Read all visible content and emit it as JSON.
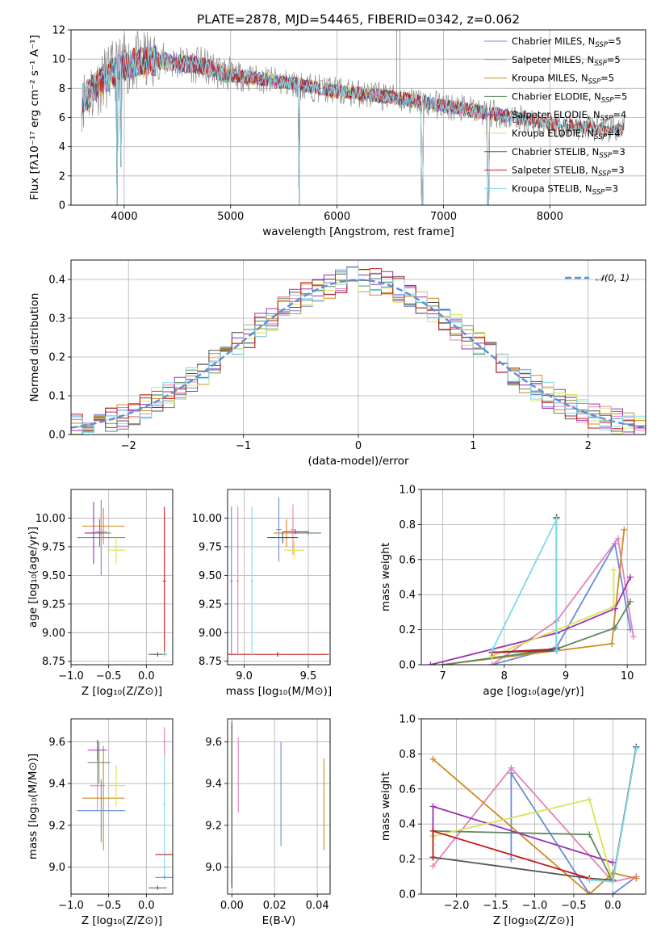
{
  "figure": {
    "title": "PLATE=2878, MJD=54465, FIBERID=0342, z=0.062"
  },
  "model_colors": [
    "#6a8adc",
    "#e681b7",
    "#d08a1f",
    "#5e8a5e",
    "#9b31ad",
    "#d8e354",
    "#565656",
    "#c21b1b",
    "#7fd9e8"
  ],
  "chart_data": [
    {
      "id": "spectrum",
      "type": "line",
      "title": "PLATE=2878, MJD=54465, FIBERID=0342, z=0.062",
      "xlabel": "wavelength [Angstrom, rest frame]",
      "ylabel": "Flux [fλ10⁻¹⁷ erg cm⁻² s⁻¹ A⁻¹]",
      "xlim": [
        3500,
        8900
      ],
      "ylim": [
        0,
        12
      ],
      "xticks": [
        4000,
        5000,
        6000,
        7000,
        8000
      ],
      "yticks": [
        0,
        2,
        4,
        6,
        8,
        10,
        12
      ],
      "legend_position": "top-right",
      "legend": [
        {
          "name": "Chabrier MILES, N",
          "sub": "SSP",
          "tail": "=5"
        },
        {
          "name": "Salpeter MILES, N",
          "sub": "SSP",
          "tail": "=5"
        },
        {
          "name": "Kroupa MILES, N",
          "sub": "SSP",
          "tail": "=5"
        },
        {
          "name": "Chabrier ELODIE, N",
          "sub": "SSP",
          "tail": "=5"
        },
        {
          "name": "Salpeter ELODIE, N",
          "sub": "SSP",
          "tail": "=4"
        },
        {
          "name": "Kroupa ELODIE, N",
          "sub": "SSP",
          "tail": "=4"
        },
        {
          "name": "Chabrier STELIB, N",
          "sub": "SSP",
          "tail": "=3"
        },
        {
          "name": "Salpeter STELIB, N",
          "sub": "SSP",
          "tail": "=3"
        },
        {
          "name": "Kroupa STELIB, N",
          "sub": "SSP",
          "tail": "=3"
        }
      ],
      "continuum": [
        [
          3600,
          7.2
        ],
        [
          3800,
          8.6
        ],
        [
          4000,
          9.6
        ],
        [
          4300,
          9.9
        ],
        [
          4700,
          9.6
        ],
        [
          5000,
          8.9
        ],
        [
          5500,
          8.4
        ],
        [
          6000,
          7.8
        ],
        [
          6500,
          7.4
        ],
        [
          7000,
          6.8
        ],
        [
          7500,
          6.2
        ],
        [
          8000,
          5.6
        ],
        [
          8500,
          5.2
        ],
        [
          8700,
          5.1
        ]
      ],
      "observed_x_range": [
        3600,
        8700
      ],
      "model_x_range": [
        3600,
        7600
      ],
      "model_x_range_long": [
        3600,
        8700
      ],
      "absorption_dips": [
        [
          3933,
          0
        ],
        [
          3968,
          2.6
        ],
        [
          5640,
          0
        ],
        [
          6800,
          0
        ],
        [
          7420,
          0
        ]
      ],
      "emission_spikes": [
        [
          6560,
          12
        ],
        [
          6590,
          12
        ]
      ]
    },
    {
      "id": "residuals",
      "type": "line",
      "xlabel": "(data-model)/error",
      "ylabel": "Normed distribution",
      "xlim": [
        -2.5,
        2.5
      ],
      "ylim": [
        0,
        0.45
      ],
      "xticks": [
        -2,
        -1,
        0,
        1,
        2
      ],
      "yticks": [
        0.0,
        0.1,
        0.2,
        0.3,
        0.4
      ],
      "legend_position": "top-right",
      "reference": {
        "name": "𝒩(0, 1)",
        "color": "#5b8fd9",
        "mu": 0,
        "sigma": 1
      },
      "bin_width": 0.1
    },
    {
      "id": "age-vs-Z",
      "type": "scatter",
      "xlabel": "Z [log₁₀(Z/Z⊙)]",
      "ylabel": "age  [log₁₀(age/yr)]",
      "xlim": [
        -1.0,
        0.35
      ],
      "ylim": [
        8.72,
        10.25
      ],
      "xticks": [
        -1.0,
        -0.5,
        0.0
      ],
      "yticks": [
        8.75,
        9.0,
        9.25,
        9.5,
        9.75,
        10.0
      ],
      "points": [
        {
          "x": -0.6,
          "y": 9.83,
          "xerr": 0.32,
          "yerr": 0.33
        },
        {
          "x": -0.6,
          "y": 9.88,
          "xerr": 0.08,
          "yerr": 0.17
        },
        {
          "x": -0.57,
          "y": 9.93,
          "xerr": 0.28,
          "yerr": 0.16
        },
        {
          "x": -0.62,
          "y": 9.87,
          "xerr": 0.15,
          "yerr": 0.12
        },
        {
          "x": -0.7,
          "y": 9.87,
          "xerr": 0.12,
          "yerr": 0.27
        },
        {
          "x": -0.4,
          "y": 9.72,
          "xerr": 0.12,
          "yerr": 0.12
        },
        {
          "x": 0.15,
          "y": 8.81,
          "xerr": 0.12,
          "yerr": 0.02
        },
        {
          "x": 0.24,
          "y": 9.45,
          "xerr": 0.02,
          "yerr": 0.65
        },
        {
          "x": 0.24,
          "y": 8.81,
          "xerr": 0.02,
          "yerr": 0.02
        }
      ]
    },
    {
      "id": "age-vs-mass",
      "type": "scatter",
      "xlabel": "mass [log₁₀(M/M⊙)]",
      "ylabel": "",
      "xlim": [
        8.87,
        9.67
      ],
      "ylim": [
        8.72,
        10.25
      ],
      "xticks": [
        9.0,
        9.5
      ],
      "yticks": [
        8.75,
        9.0,
        9.25,
        9.5,
        9.75,
        10.0
      ],
      "points": [
        {
          "x": 9.27,
          "y": 9.9,
          "xerr": 0.02,
          "yerr": 0.28
        },
        {
          "x": 9.38,
          "y": 9.9,
          "xerr": 0.02,
          "yerr": 0.22
        },
        {
          "x": 9.33,
          "y": 9.87,
          "xerr": 0.1,
          "yerr": 0.12
        },
        {
          "x": 9.5,
          "y": 9.87,
          "xerr": 0.1,
          "yerr": 0.02
        },
        {
          "x": 9.4,
          "y": 9.88,
          "xerr": 0.1,
          "yerr": 0.02
        },
        {
          "x": 9.39,
          "y": 9.72,
          "xerr": 0.08,
          "yerr": 0.08
        },
        {
          "x": 9.3,
          "y": 9.83,
          "xerr": 0.12,
          "yerr": 0.05
        },
        {
          "x": 9.26,
          "y": 8.81,
          "xerr": 0.4,
          "yerr": 0.02
        },
        {
          "x": 9.06,
          "y": 9.45,
          "xerr": 0.01,
          "yerr": 0.65
        },
        {
          "x": 8.9,
          "y": 9.45,
          "xerr": 0.01,
          "yerr": 0.65
        },
        {
          "x": 8.95,
          "y": 9.45,
          "xerr": 0.01,
          "yerr": 0.65
        }
      ]
    },
    {
      "id": "weight-vs-age",
      "type": "line",
      "xlabel": "age  [log₁₀(age/yr)]",
      "ylabel": "mass weight",
      "xlim": [
        6.65,
        10.3
      ],
      "ylim": [
        0,
        1.0
      ],
      "xticks": [
        7,
        8,
        9,
        10
      ],
      "yticks": [
        0.0,
        0.2,
        0.4,
        0.6,
        0.8,
        1.0
      ],
      "series": [
        {
          "color_index": 0,
          "x": [
            7.8,
            8.85,
            9.8,
            10.05
          ],
          "y": [
            0.0,
            0.1,
            0.69,
            0.2
          ]
        },
        {
          "color_index": 1,
          "x": [
            7.8,
            8.85,
            9.85,
            10.1
          ],
          "y": [
            0.0,
            0.25,
            0.72,
            0.16
          ]
        },
        {
          "color_index": 2,
          "x": [
            7.0,
            8.85,
            9.75,
            9.95
          ],
          "y": [
            0.0,
            0.08,
            0.12,
            0.77
          ]
        },
        {
          "color_index": 3,
          "x": [
            7.0,
            8.85,
            9.8,
            10.05
          ],
          "y": [
            0.0,
            0.09,
            0.21,
            0.36
          ]
        },
        {
          "color_index": 4,
          "x": [
            6.8,
            8.85,
            9.8,
            10.05
          ],
          "y": [
            0.0,
            0.18,
            0.32,
            0.5
          ]
        },
        {
          "color_index": 5,
          "x": [
            7.8,
            9.78,
            9.78
          ],
          "y": [
            0.05,
            0.33,
            0.54
          ]
        },
        {
          "color_index": 6,
          "x": [
            7.8,
            8.85,
            8.85
          ],
          "y": [
            0.07,
            0.08,
            0.84
          ]
        },
        {
          "color_index": 7,
          "x": [
            7.8,
            8.85,
            8.85
          ],
          "y": [
            0.07,
            0.09,
            0.84
          ]
        },
        {
          "color_index": 8,
          "x": [
            7.8,
            8.85,
            8.85
          ],
          "y": [
            0.08,
            0.83,
            0.08
          ]
        }
      ]
    },
    {
      "id": "mass-vs-Z",
      "type": "scatter",
      "xlabel": "Z [log₁₀(Z/Z⊙)]",
      "ylabel": "mass [log₁₀(M/M⊙)]",
      "xlim": [
        -1.0,
        0.35
      ],
      "ylim": [
        8.87,
        9.71
      ],
      "xticks": [
        -1.0,
        -0.5,
        0.0
      ],
      "yticks": [
        9.0,
        9.2,
        9.4,
        9.6
      ],
      "points": [
        {
          "x": -0.6,
          "y": 9.27,
          "xerr": 0.32,
          "yerr": 0.15
        },
        {
          "x": -0.65,
          "y": 9.39,
          "xerr": 0.1,
          "yerr": 0.12
        },
        {
          "x": -0.57,
          "y": 9.33,
          "xerr": 0.28,
          "yerr": 0.25
        },
        {
          "x": -0.63,
          "y": 9.5,
          "xerr": 0.15,
          "yerr": 0.1
        },
        {
          "x": -0.65,
          "y": 9.56,
          "xerr": 0.13,
          "yerr": 0.05
        },
        {
          "x": -0.4,
          "y": 9.39,
          "xerr": 0.12,
          "yerr": 0.1
        },
        {
          "x": 0.15,
          "y": 8.9,
          "xerr": 0.12,
          "yerr": 0.01
        },
        {
          "x": 0.24,
          "y": 9.06,
          "xerr": 0.12,
          "yerr": 0.01
        },
        {
          "x": 0.24,
          "y": 9.3,
          "xerr": 0.02,
          "yerr": 0.35
        },
        {
          "x": 0.24,
          "y": 8.95,
          "xerr": 0.12,
          "yerr": 0.01
        },
        {
          "x": 0.24,
          "y": 9.6,
          "xerr": 0.02,
          "yerr": 0.07
        }
      ]
    },
    {
      "id": "mass-vs-EBV",
      "type": "scatter",
      "xlabel": "E(B-V)",
      "ylabel": "",
      "xlim": [
        -0.002,
        0.046
      ],
      "ylim": [
        8.87,
        9.71
      ],
      "xticks": [
        0.0,
        0.02,
        0.04
      ],
      "yticks": [
        9.0,
        9.2,
        9.4,
        9.6
      ],
      "points": [
        {
          "x": 0.023,
          "y": 9.35,
          "xerr": 0,
          "yerr": 0.25
        },
        {
          "x": 0.003,
          "y": 9.44,
          "xerr": 0,
          "yerr": 0.18
        },
        {
          "x": 0.0431,
          "y": 9.3,
          "xerr": 0,
          "yerr": 0.22
        },
        {
          "x": 0.0,
          "y": 9.25,
          "xerr": 0,
          "yerr": 0.35
        },
        {
          "x": 0.0,
          "y": 9.3,
          "xerr": 0,
          "yerr": 0.38
        },
        {
          "x": 0.0,
          "y": 9.35,
          "xerr": 0,
          "yerr": 0.3
        },
        {
          "x": 0.0,
          "y": 9.3,
          "xerr": 0,
          "yerr": 0.4
        }
      ]
    },
    {
      "id": "weight-vs-Z",
      "type": "line",
      "xlabel": "Z [log₁₀(Z/Z⊙)]",
      "ylabel": "mass weight",
      "xlim": [
        -2.45,
        0.42
      ],
      "ylim": [
        0,
        1.0
      ],
      "xticks": [
        -2.0,
        -1.5,
        -1.0,
        -0.5,
        0.0
      ],
      "yticks": [
        0.0,
        0.2,
        0.4,
        0.6,
        0.8,
        1.0
      ],
      "series": [
        {
          "color_index": 0,
          "x": [
            -1.3,
            -1.3,
            -0.3,
            0.0,
            0.3
          ],
          "y": [
            0.2,
            0.69,
            0.0,
            0.0,
            0.1
          ]
        },
        {
          "color_index": 1,
          "x": [
            -2.3,
            -1.3,
            0.0,
            0.3
          ],
          "y": [
            0.16,
            0.72,
            0.07,
            0.1
          ]
        },
        {
          "color_index": 2,
          "x": [
            -2.3,
            -0.3,
            0.0,
            0.3
          ],
          "y": [
            0.77,
            0.0,
            0.12,
            0.09
          ]
        },
        {
          "color_index": 3,
          "x": [
            -2.3,
            -0.3,
            0.0,
            0.3
          ],
          "y": [
            0.36,
            0.34,
            0.07,
            0.84
          ]
        },
        {
          "color_index": 4,
          "x": [
            -2.3,
            -2.3,
            0.0
          ],
          "y": [
            0.33,
            0.5,
            0.18
          ]
        },
        {
          "color_index": 5,
          "x": [
            -2.3,
            -0.3,
            0.0
          ],
          "y": [
            0.33,
            0.54,
            0.07
          ]
        },
        {
          "color_index": 6,
          "x": [
            -2.3,
            -0.3,
            0.0,
            0.3
          ],
          "y": [
            0.21,
            0.09,
            0.08,
            0.84
          ]
        },
        {
          "color_index": 7,
          "x": [
            -2.3,
            -2.3,
            -0.3
          ],
          "y": [
            0.21,
            0.36,
            0.09
          ]
        },
        {
          "color_index": 8,
          "x": [
            -0.3,
            0.0,
            0.3
          ],
          "y": [
            0.08,
            0.07,
            0.83
          ]
        }
      ]
    }
  ]
}
